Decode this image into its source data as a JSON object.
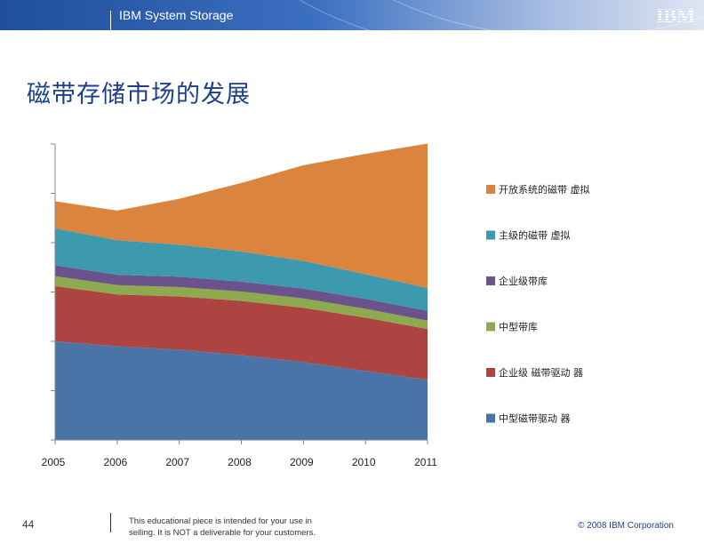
{
  "header": {
    "title": "IBM System Storage",
    "logo": "IBM"
  },
  "slide": {
    "title": "磁带存储市场的发展"
  },
  "footer": {
    "page": "44",
    "note_line1": "This educational piece is intended for your use in",
    "note_line2": "selling. It is NOT a deliverable for your customers.",
    "copyright": "© 2008 IBM Corporation"
  },
  "chart_data": {
    "type": "area",
    "stacked": true,
    "title": "",
    "xlabel": "",
    "ylabel": "",
    "x": [
      "2005",
      "2006",
      "2007",
      "2008",
      "2009",
      "2010",
      "2011"
    ],
    "ylim": [
      0,
      6
    ],
    "y_tick_labels_shown": false,
    "grid": false,
    "legend_position": "right",
    "series": [
      {
        "name": "中型磁带驱动 器",
        "color": "#4a74a8",
        "values": [
          2.0,
          1.9,
          1.83,
          1.72,
          1.58,
          1.4,
          1.22
        ]
      },
      {
        "name": "企业级 磁带驱动 器",
        "color": "#ad4441",
        "values": [
          1.12,
          1.05,
          1.08,
          1.1,
          1.1,
          1.08,
          1.03
        ]
      },
      {
        "name": "中型带库",
        "color": "#8eaa4e",
        "values": [
          0.2,
          0.19,
          0.19,
          0.19,
          0.19,
          0.18,
          0.17
        ]
      },
      {
        "name": "企业级带库",
        "color": "#6a528a",
        "values": [
          0.22,
          0.21,
          0.21,
          0.2,
          0.2,
          0.2,
          0.2
        ]
      },
      {
        "name": "主级的磁带 虚拟",
        "color": "#3d99ad",
        "values": [
          0.75,
          0.7,
          0.65,
          0.61,
          0.56,
          0.5,
          0.46
        ]
      },
      {
        "name": "开放系统的磁带 虚拟",
        "color": "#db843d",
        "values": [
          0.55,
          0.6,
          0.93,
          1.39,
          1.94,
          2.44,
          2.93
        ]
      }
    ]
  }
}
